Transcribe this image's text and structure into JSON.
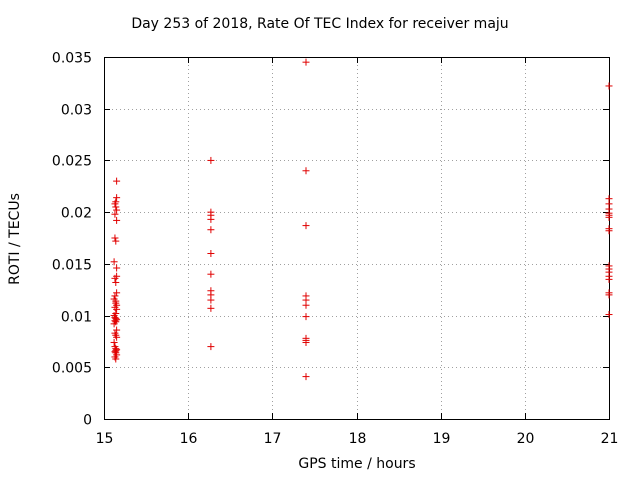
{
  "chart_data": {
    "type": "scatter",
    "title": "Day 253 of 2018, Rate Of TEC Index for receiver maju",
    "xlabel": "GPS time / hours",
    "ylabel": "ROTI / TECUs",
    "xlim": [
      15,
      21
    ],
    "ylim": [
      0,
      0.035
    ],
    "xticks": [
      15,
      16,
      17,
      18,
      19,
      20,
      21
    ],
    "xtick_labels": [
      "15",
      "16",
      "17",
      "18",
      "19",
      "20",
      "21"
    ],
    "yticks": [
      0,
      0.005,
      0.01,
      0.015,
      0.02,
      0.025,
      0.03,
      0.035
    ],
    "ytick_labels": [
      "0",
      "0.005",
      "0.01",
      "0.015",
      "0.02",
      "0.025",
      "0.03",
      "0.035"
    ],
    "grid": true,
    "marker": "plus",
    "color": "#e00000",
    "series": [
      {
        "x": [
          15.15,
          15.15,
          15.14,
          15.13,
          15.14,
          15.15,
          15.13,
          15.15,
          15.13,
          15.14,
          15.12,
          15.15,
          15.15,
          15.13,
          15.14,
          15.15,
          15.13,
          15.12,
          15.14,
          15.14,
          15.15,
          15.13,
          15.15,
          15.14,
          15.12,
          15.13,
          15.14,
          15.15,
          15.13,
          15.14,
          15.12,
          15.15,
          15.13,
          15.14,
          15.15,
          15.12,
          15.13,
          15.14,
          15.15,
          15.14,
          15.13,
          15.14,
          15.15,
          15.13,
          15.14,
          16.27,
          16.27,
          16.27,
          16.27,
          16.27,
          16.27,
          16.27,
          16.27,
          16.27,
          16.27,
          16.27,
          16.27,
          17.4,
          17.4,
          17.4,
          17.4,
          17.4,
          17.4,
          17.4,
          17.4,
          17.4,
          17.4,
          17.4,
          21.0,
          21.0,
          21.0,
          21.0,
          21.0,
          21.0,
          21.0,
          21.0,
          21.0,
          21.0,
          21.0,
          21.0,
          21.0,
          21.0,
          21.0,
          21.0,
          21.0
        ],
        "y": [
          0.023,
          0.0214,
          0.021,
          0.0208,
          0.0205,
          0.0202,
          0.0198,
          0.0192,
          0.0175,
          0.0172,
          0.0152,
          0.0146,
          0.0138,
          0.0136,
          0.0132,
          0.0122,
          0.0119,
          0.0116,
          0.0114,
          0.0112,
          0.011,
          0.0108,
          0.0106,
          0.0102,
          0.01,
          0.0098,
          0.0097,
          0.0096,
          0.0095,
          0.0094,
          0.0092,
          0.0086,
          0.0083,
          0.0081,
          0.0079,
          0.0074,
          0.007,
          0.0068,
          0.0067,
          0.0066,
          0.0065,
          0.0064,
          0.0062,
          0.006,
          0.0058,
          0.025,
          0.02,
          0.0197,
          0.0193,
          0.0183,
          0.016,
          0.014,
          0.0124,
          0.012,
          0.0115,
          0.0107,
          0.007,
          0.0345,
          0.024,
          0.0187,
          0.0119,
          0.0115,
          0.011,
          0.0099,
          0.0078,
          0.0076,
          0.0074,
          0.0041,
          0.0322,
          0.0213,
          0.0208,
          0.0203,
          0.0199,
          0.0197,
          0.0195,
          0.0184,
          0.0182,
          0.0148,
          0.0145,
          0.0142,
          0.0138,
          0.0135,
          0.0122,
          0.012,
          0.0101
        ]
      }
    ]
  }
}
